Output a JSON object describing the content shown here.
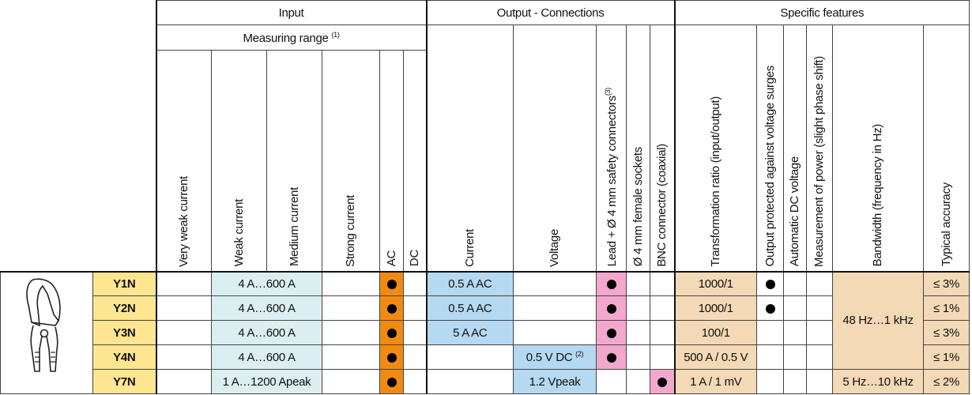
{
  "header": {
    "groups": {
      "input": "Input",
      "output": "Output - Connections",
      "features": "Specific features"
    },
    "measuring_range": "Measuring range",
    "measuring_range_note": "(1)",
    "columns": {
      "very_weak": "Very weak current",
      "weak": "Weak current",
      "medium": "Medium current",
      "strong": "Strong current",
      "ac": "AC",
      "dc": "DC",
      "current": "Current",
      "voltage": "Voltage",
      "lead_connectors": "Lead + Ø 4 mm safety connectors",
      "lead_connectors_note": "(3)",
      "female_sockets": "Ø 4 mm female sockets",
      "bnc": "BNC connector (coaxial)",
      "transformation_ratio": "Transformation ratio (input/output)",
      "output_protected": "Output protected against voltage surges",
      "automatic_dc": "Automatic DC voltage",
      "power_measurement": "Measurement of power (slight phase shift)",
      "bandwidth": "Bandwidth (frequency in Hz)",
      "accuracy": "Typical accuracy"
    }
  },
  "rows": [
    {
      "model": "Y1N",
      "weak": "4 A…600 A",
      "current": "0.5 A AC",
      "voltage": "",
      "voltage_note": "",
      "ratio": "1000/1",
      "accuracy": "≤ 3%"
    },
    {
      "model": "Y2N",
      "weak": "4 A…600 A",
      "current": "0.5 A AC",
      "voltage": "",
      "voltage_note": "",
      "ratio": "1000/1",
      "accuracy": "≤ 1%"
    },
    {
      "model": "Y3N",
      "weak": "4 A…600 A",
      "current": "5 A AC",
      "voltage": "",
      "voltage_note": "",
      "ratio": "100/1",
      "accuracy": "≤ 3%"
    },
    {
      "model": "Y4N",
      "weak": "4 A…600 A",
      "current": "",
      "voltage": "0.5 V DC",
      "voltage_note": "(2)",
      "ratio": "500 A / 0.5 V",
      "accuracy": "≤ 1%"
    },
    {
      "model": "Y7N",
      "weak": "1 A…1200 Apeak",
      "current": "",
      "voltage": "1.2 Vpeak",
      "voltage_note": "",
      "ratio": "1 A / 1 mV",
      "accuracy": "≤ 2%"
    }
  ],
  "bandwidth": {
    "shared": "48 Hz…1 kHz",
    "y7n": "5 Hz…10 kHz"
  },
  "icons": {
    "probe": "clamp-probe-icon",
    "dot": "dot-icon"
  }
}
